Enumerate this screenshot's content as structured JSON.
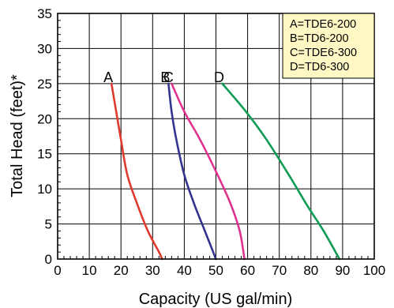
{
  "chart_data": {
    "type": "line",
    "xlabel": "Capacity (US gal/min)",
    "ylabel": "Total Head (feet)*",
    "xlim": [
      0,
      100
    ],
    "ylim": [
      0,
      35
    ],
    "x_ticks": [
      "0",
      "10",
      "20",
      "30",
      "40",
      "50",
      "60",
      "70",
      "80",
      "90",
      "100"
    ],
    "y_ticks": [
      "0",
      "5",
      "10",
      "15",
      "20",
      "25",
      "30",
      "35"
    ],
    "grid": true,
    "legend_position": "top-right",
    "legend_background": "#fff8c4",
    "legend_entries": [
      "A=TDE6-200",
      "B=TD6-200",
      "C=TDE6-300",
      "D=TD6-300"
    ],
    "series": [
      {
        "name": "A",
        "color": "#e03a2f",
        "points": [
          [
            17,
            25
          ],
          [
            18.5,
            21
          ],
          [
            20,
            17
          ],
          [
            22,
            12
          ],
          [
            25,
            8
          ],
          [
            28.5,
            4
          ],
          [
            32,
            1
          ],
          [
            33,
            0
          ]
        ]
      },
      {
        "name": "B",
        "color": "#33348f",
        "points": [
          [
            35,
            25
          ],
          [
            36,
            21
          ],
          [
            37.5,
            17
          ],
          [
            40,
            12
          ],
          [
            43,
            8
          ],
          [
            46.5,
            4
          ],
          [
            50,
            0
          ]
        ]
      },
      {
        "name": "C",
        "color": "#e0338f",
        "points": [
          [
            36,
            25
          ],
          [
            40,
            21
          ],
          [
            45,
            17
          ],
          [
            50.5,
            12
          ],
          [
            54.5,
            8
          ],
          [
            57.5,
            4
          ],
          [
            59,
            0
          ]
        ]
      },
      {
        "name": "D",
        "color": "#0f9b55",
        "points": [
          [
            52,
            25
          ],
          [
            59.5,
            21
          ],
          [
            66,
            17
          ],
          [
            73,
            12
          ],
          [
            79,
            7.5
          ],
          [
            84,
            4
          ],
          [
            89,
            0
          ]
        ]
      }
    ]
  }
}
